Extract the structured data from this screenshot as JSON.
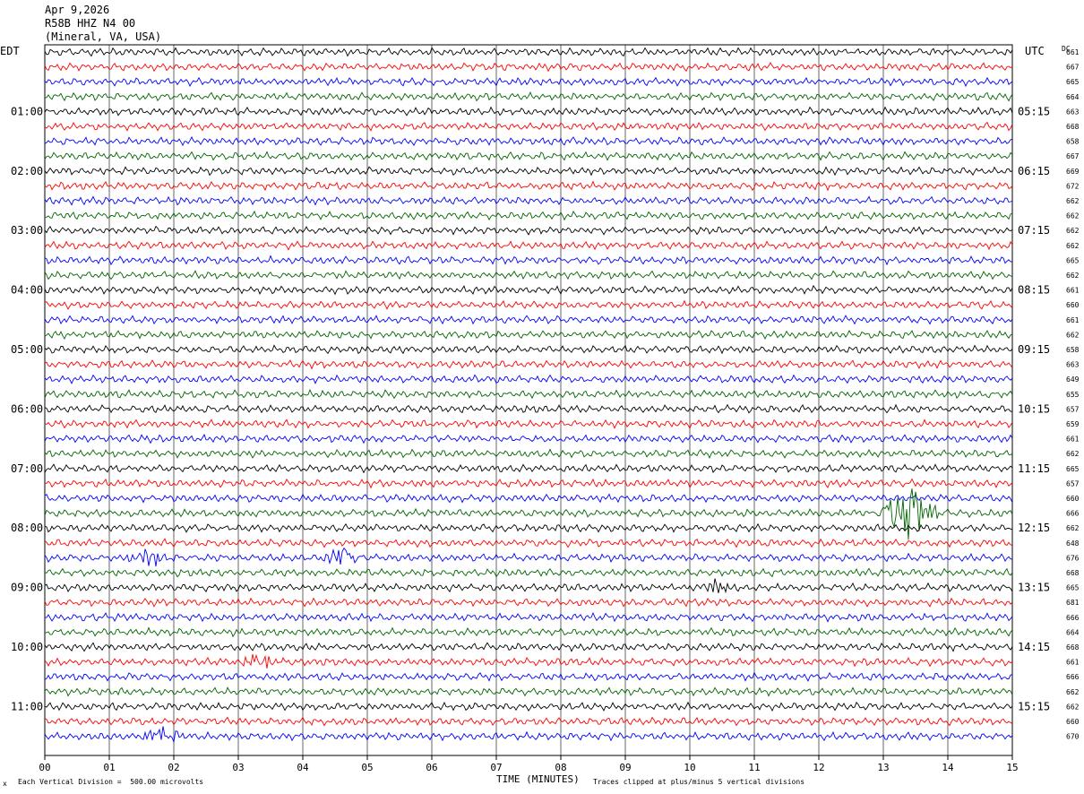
{
  "header": {
    "date": "Apr 9,2026",
    "station": "R58B HHZ N4 00",
    "location": "(Mineral, VA, USA)"
  },
  "left_timezone": "EDT",
  "right_timezone": "UTC",
  "dc_label": "DC",
  "footer": {
    "scale_note": "Each Vertical Division =  500.00 microvolts",
    "clip_note": "Traces clipped at plus/minus 5 vertical divisions",
    "marker": "x"
  },
  "colors": {
    "trace_cycle": [
      "#000000",
      "#ff0000",
      "#0000ff",
      "#006400"
    ],
    "grid": "#000000"
  },
  "chart_data": {
    "type": "line",
    "title": "",
    "xlabel": "TIME (MINUTES)",
    "xlim": [
      0,
      15
    ],
    "x_ticks": [
      "00",
      "01",
      "02",
      "03",
      "04",
      "05",
      "06",
      "07",
      "08",
      "09",
      "10",
      "11",
      "12",
      "13",
      "14",
      "15"
    ],
    "rows_per_hour": 4,
    "left_hour_labels": [
      "01:00",
      "02:00",
      "03:00",
      "04:00",
      "05:00",
      "06:00",
      "07:00",
      "08:00",
      "09:00",
      "10:00",
      "11:00"
    ],
    "right_hour_labels": [
      "05:15",
      "06:15",
      "07:15",
      "08:15",
      "09:15",
      "10:15",
      "11:15",
      "12:15",
      "13:15",
      "14:15",
      "15:15"
    ],
    "dc_offsets": [
      "661",
      "667",
      "665",
      "664",
      "663",
      "668",
      "658",
      "667",
      "669",
      "672",
      "662",
      "662",
      "662",
      "662",
      "665",
      "662",
      "661",
      "660",
      "661",
      "662",
      "658",
      "663",
      "649",
      "655",
      "657",
      "659",
      "661",
      "662",
      "665",
      "657",
      "660",
      "666",
      "662",
      "648",
      "676",
      "668",
      "665",
      "681",
      "666",
      "664",
      "668",
      "661",
      "666",
      "662",
      "662",
      "660",
      "670"
    ],
    "events": [
      {
        "row": 31,
        "minute": 13.4,
        "amplitude": "clipped"
      },
      {
        "row": 34,
        "minute": 1.6,
        "amplitude": "large"
      },
      {
        "row": 34,
        "minute": 4.6,
        "amplitude": "large"
      },
      {
        "row": 36,
        "minute": 10.4,
        "amplitude": "moderate"
      },
      {
        "row": 41,
        "minute": 3.3,
        "amplitude": "large"
      },
      {
        "row": 46,
        "minute": 1.8,
        "amplitude": "large"
      }
    ]
  }
}
